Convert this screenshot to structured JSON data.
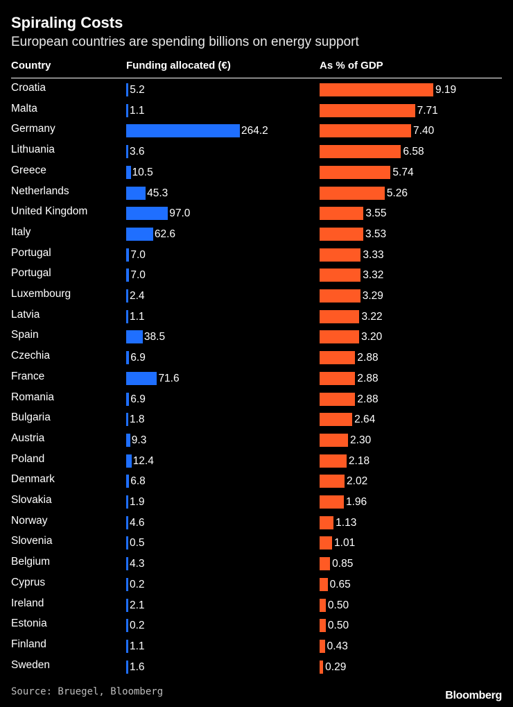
{
  "title": "Spiraling Costs",
  "subtitle": "European countries are spending billions on energy support",
  "headers": {
    "country": "Country",
    "funding": "Funding allocated (€)",
    "gdp": "As % of GDP"
  },
  "source": "Source: Bruegel, Bloomberg",
  "brand": "Bloomberg",
  "colors": {
    "funding_bar": "#1f6fff",
    "gdp_bar": "#ff5a24",
    "background": "#000000"
  },
  "chart_data": {
    "type": "bar",
    "title": "Spiraling Costs",
    "subtitle": "European countries are spending billions on energy support",
    "categories": [
      "Croatia",
      "Malta",
      "Germany",
      "Lithuania",
      "Greece",
      "Netherlands",
      "United Kingdom",
      "Italy",
      "Portugal",
      "Portugal",
      "Luxembourg",
      "Latvia",
      "Spain",
      "Czechia",
      "France",
      "Romania",
      "Bulgaria",
      "Austria",
      "Poland",
      "Denmark",
      "Slovakia",
      "Norway",
      "Slovenia",
      "Belgium",
      "Cyprus",
      "Ireland",
      "Estonia",
      "Finland",
      "Sweden"
    ],
    "series": [
      {
        "name": "Funding allocated (€)",
        "values": [
          5.2,
          1.1,
          264.2,
          3.6,
          10.5,
          45.3,
          97.0,
          62.6,
          7.0,
          7.0,
          2.4,
          1.1,
          38.5,
          6.9,
          71.6,
          6.9,
          1.8,
          9.3,
          12.4,
          6.8,
          1.9,
          4.6,
          0.5,
          4.3,
          0.2,
          2.1,
          0.2,
          1.1,
          1.6
        ],
        "labels": [
          "5.2",
          "1.1",
          "264.2",
          "3.6",
          "10.5",
          "45.3",
          "97.0",
          "62.6",
          "7.0",
          "7.0",
          "2.4",
          "1.1",
          "38.5",
          "6.9",
          "71.6",
          "6.9",
          "1.8",
          "9.3",
          "12.4",
          "6.8",
          "1.9",
          "4.6",
          "0.5",
          "4.3",
          "0.2",
          "2.1",
          "0.2",
          "1.1",
          "1.6"
        ]
      },
      {
        "name": "As % of GDP",
        "values": [
          9.19,
          7.71,
          7.4,
          6.58,
          5.74,
          5.26,
          3.55,
          3.53,
          3.33,
          3.32,
          3.29,
          3.22,
          3.2,
          2.88,
          2.88,
          2.88,
          2.64,
          2.3,
          2.18,
          2.02,
          1.96,
          1.13,
          1.01,
          0.85,
          0.65,
          0.5,
          0.5,
          0.43,
          0.29
        ],
        "labels": [
          "9.19",
          "7.71",
          "7.40",
          "6.58",
          "5.74",
          "5.26",
          "3.55",
          "3.53",
          "3.33",
          "3.32",
          "3.29",
          "3.22",
          "3.20",
          "2.88",
          "2.88",
          "2.88",
          "2.64",
          "2.30",
          "2.18",
          "2.02",
          "1.96",
          "1.13",
          "1.01",
          "0.85",
          "0.65",
          "0.50",
          "0.50",
          "0.43",
          "0.29"
        ]
      }
    ],
    "orientation": "horizontal"
  }
}
